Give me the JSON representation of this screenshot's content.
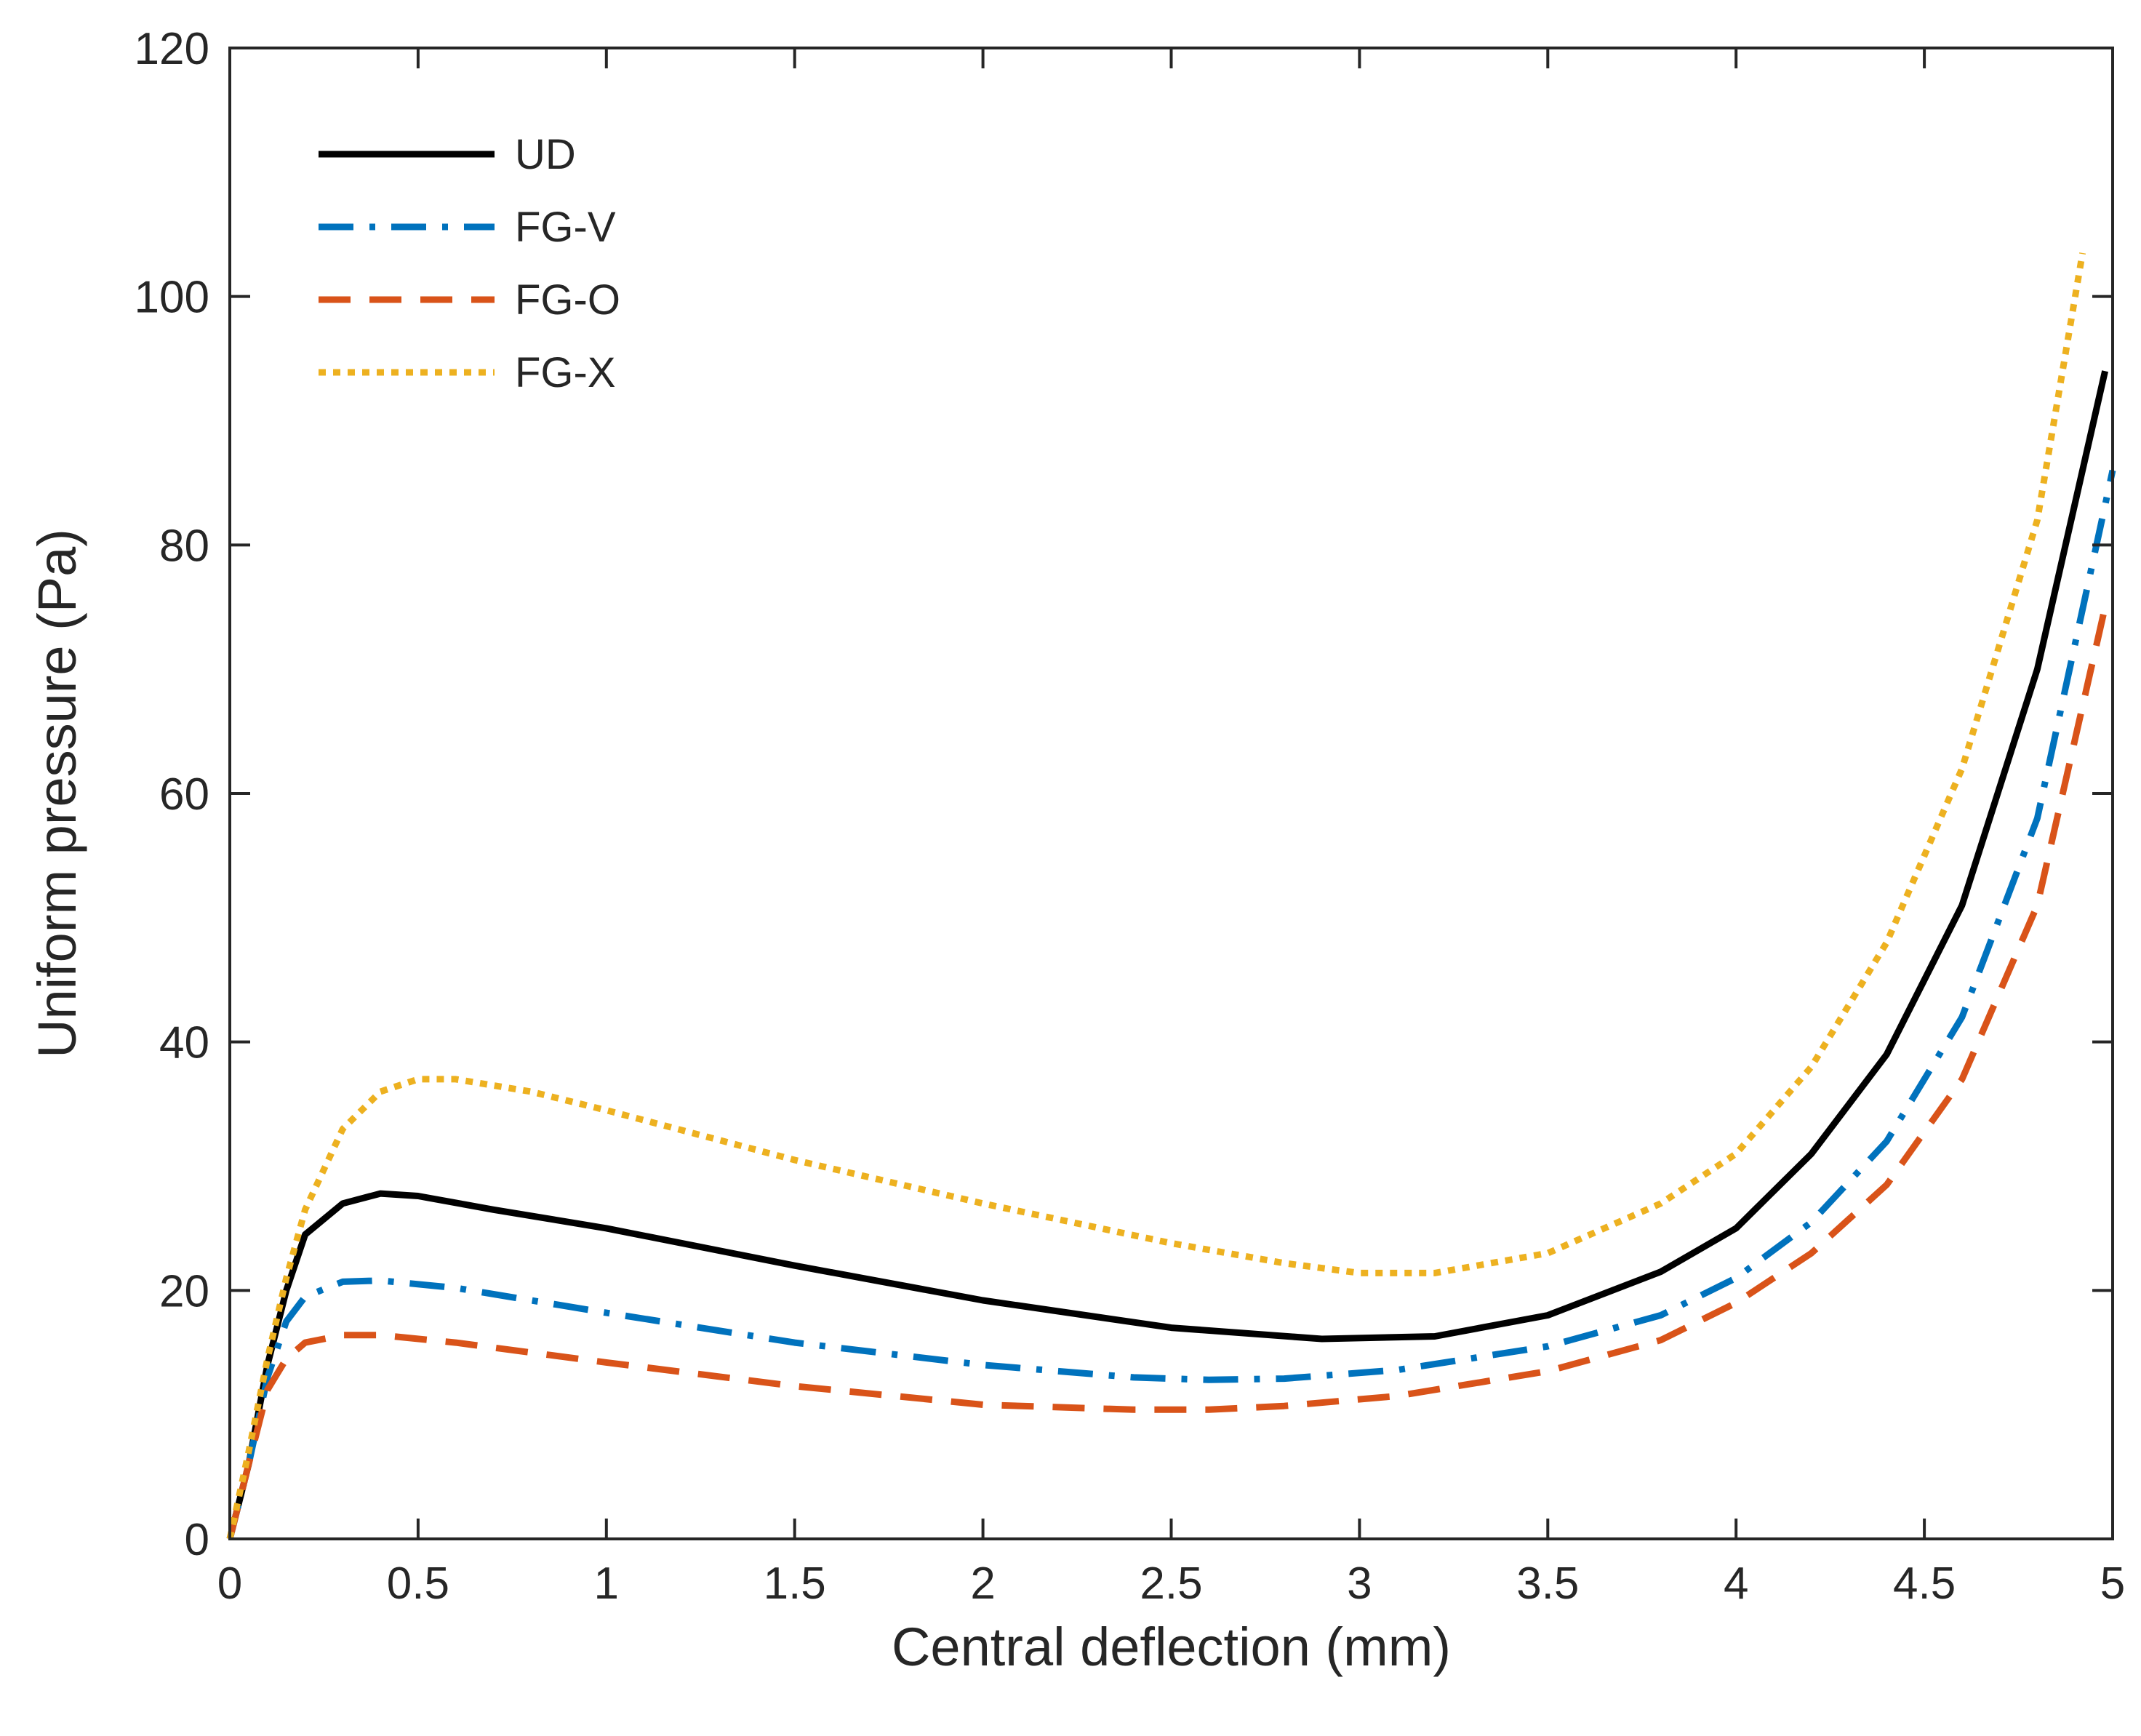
{
  "chart_data": {
    "type": "line",
    "title": "",
    "xlabel": "Central deflection (mm)",
    "ylabel": "Uniform pressure (Pa)",
    "xlim": [
      0,
      5
    ],
    "ylim": [
      0,
      120
    ],
    "xticks": [
      0,
      0.5,
      1,
      1.5,
      2,
      2.5,
      3,
      3.5,
      4,
      4.5,
      5
    ],
    "xtick_labels": [
      "0",
      "0.5",
      "1",
      "1.5",
      "2",
      "2.5",
      "3",
      "3.5",
      "4",
      "4.5",
      "5"
    ],
    "yticks": [
      0,
      20,
      40,
      60,
      80,
      100,
      120
    ],
    "ytick_labels": [
      "0",
      "20",
      "40",
      "60",
      "80",
      "100",
      "120"
    ],
    "grid": false,
    "legend_position": "top-left",
    "series": [
      {
        "name": "UD",
        "color": "#000000",
        "dash": "solid",
        "points": [
          [
            0,
            0
          ],
          [
            0.05,
            6
          ],
          [
            0.1,
            14
          ],
          [
            0.15,
            20
          ],
          [
            0.2,
            24.5
          ],
          [
            0.3,
            27
          ],
          [
            0.4,
            27.8
          ],
          [
            0.5,
            27.6
          ],
          [
            0.7,
            26.5
          ],
          [
            1,
            25
          ],
          [
            1.5,
            22
          ],
          [
            2,
            19.2
          ],
          [
            2.5,
            17
          ],
          [
            2.9,
            16.1
          ],
          [
            3.2,
            16.3
          ],
          [
            3.5,
            18
          ],
          [
            3.8,
            21.5
          ],
          [
            4,
            25
          ],
          [
            4.2,
            31
          ],
          [
            4.4,
            39
          ],
          [
            4.6,
            51
          ],
          [
            4.8,
            70
          ],
          [
            4.98,
            94
          ]
        ]
      },
      {
        "name": "FG-V",
        "color": "#0072bd",
        "dash": "dashdot",
        "points": [
          [
            0,
            0
          ],
          [
            0.05,
            6
          ],
          [
            0.1,
            13
          ],
          [
            0.15,
            17.5
          ],
          [
            0.2,
            19.5
          ],
          [
            0.3,
            20.7
          ],
          [
            0.4,
            20.8
          ],
          [
            0.6,
            20.2
          ],
          [
            1,
            18.2
          ],
          [
            1.5,
            15.8
          ],
          [
            2,
            14
          ],
          [
            2.4,
            13
          ],
          [
            2.6,
            12.8
          ],
          [
            2.8,
            12.9
          ],
          [
            3.1,
            13.6
          ],
          [
            3.5,
            15.5
          ],
          [
            3.8,
            18
          ],
          [
            4,
            21
          ],
          [
            4.2,
            25.5
          ],
          [
            4.4,
            32
          ],
          [
            4.6,
            42
          ],
          [
            4.8,
            58
          ],
          [
            5,
            86
          ]
        ]
      },
      {
        "name": "FG-O",
        "color": "#d95319",
        "dash": "dashed",
        "points": [
          [
            0,
            0
          ],
          [
            0.05,
            6
          ],
          [
            0.1,
            12
          ],
          [
            0.15,
            14.5
          ],
          [
            0.2,
            15.8
          ],
          [
            0.3,
            16.4
          ],
          [
            0.4,
            16.4
          ],
          [
            0.6,
            15.8
          ],
          [
            1,
            14.2
          ],
          [
            1.5,
            12.3
          ],
          [
            2,
            10.8
          ],
          [
            2.4,
            10.4
          ],
          [
            2.6,
            10.4
          ],
          [
            2.8,
            10.7
          ],
          [
            3.1,
            11.5
          ],
          [
            3.5,
            13.5
          ],
          [
            3.8,
            16
          ],
          [
            4,
            19
          ],
          [
            4.2,
            23
          ],
          [
            4.4,
            28.5
          ],
          [
            4.6,
            37
          ],
          [
            4.8,
            51
          ],
          [
            4.98,
            75
          ]
        ]
      },
      {
        "name": "FG-X",
        "color": "#edb120",
        "dash": "dotted",
        "points": [
          [
            0,
            0
          ],
          [
            0.05,
            7
          ],
          [
            0.1,
            14.5
          ],
          [
            0.15,
            21
          ],
          [
            0.2,
            26.5
          ],
          [
            0.3,
            33
          ],
          [
            0.4,
            36
          ],
          [
            0.5,
            37
          ],
          [
            0.6,
            37
          ],
          [
            0.8,
            36
          ],
          [
            1,
            34.5
          ],
          [
            1.5,
            30.5
          ],
          [
            2,
            27
          ],
          [
            2.5,
            23.8
          ],
          [
            2.8,
            22.2
          ],
          [
            3,
            21.4
          ],
          [
            3.2,
            21.4
          ],
          [
            3.5,
            23
          ],
          [
            3.8,
            27
          ],
          [
            4,
            31
          ],
          [
            4.2,
            38
          ],
          [
            4.4,
            48
          ],
          [
            4.6,
            62
          ],
          [
            4.8,
            82
          ],
          [
            4.92,
            103.5
          ]
        ]
      }
    ]
  }
}
